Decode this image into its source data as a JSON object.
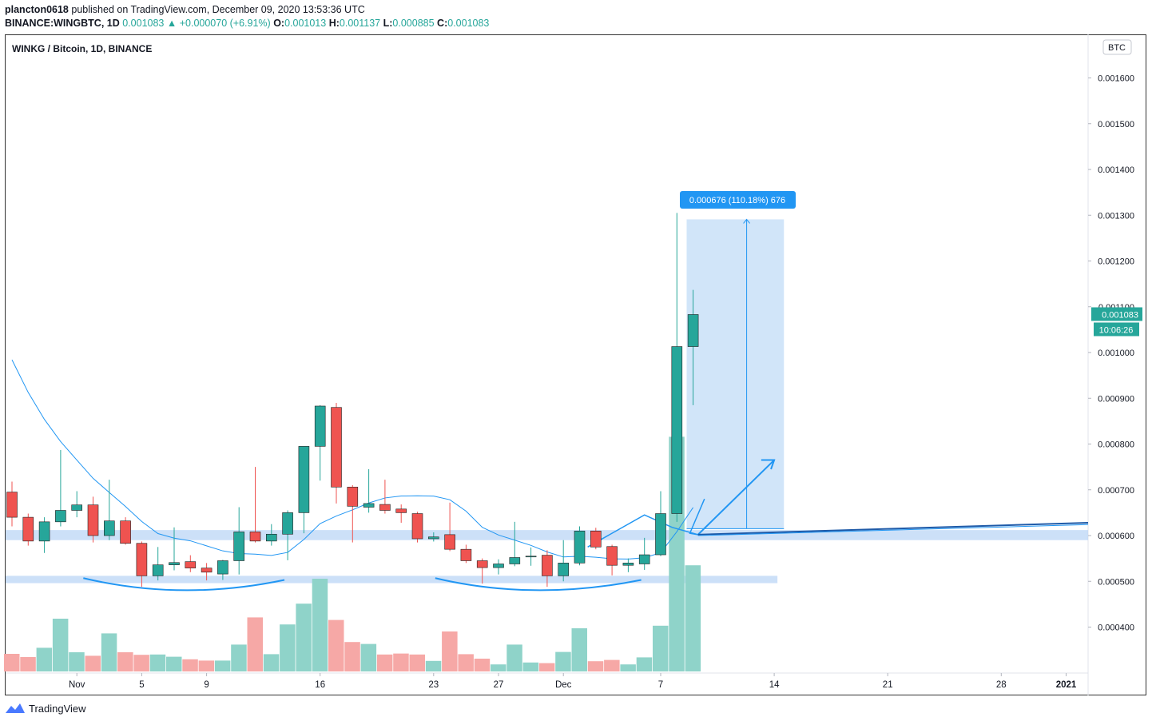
{
  "header": {
    "user": "plancton0618",
    "published": "published on TradingView.com, December 09, 2020 13:53:36 UTC",
    "symbol": "BINANCE:WINGBTC, 1D",
    "last": "0.001083",
    "change": "+0.000070 (+6.91%)",
    "o_label": "O:",
    "o_value": "0.001013",
    "h_label": "H:",
    "h_value": "0.001137",
    "l_label": "L:",
    "l_value": "0.000885",
    "c_label": "C:",
    "c_value": "0.001083"
  },
  "footer": {
    "brand": "TradingView"
  },
  "colors": {
    "up": "#26a69a",
    "down": "#ef5350",
    "ma": "#2196f3",
    "zone": "#bbd6f5"
  },
  "chart_data": {
    "type": "candlestick",
    "title": "WINKG / Bitcoin, 1D, BINANCE",
    "currency_badge": "BTC",
    "ylim": [
      0.00032,
      0.00175
    ],
    "y_ticks": [
      {
        "v": 0.0004,
        "label": "0.000400"
      },
      {
        "v": 0.0005,
        "label": "0.000500"
      },
      {
        "v": 0.0006,
        "label": "0.000600"
      },
      {
        "v": 0.0007,
        "label": "0.000700"
      },
      {
        "v": 0.0008,
        "label": "0.000800"
      },
      {
        "v": 0.0009,
        "label": "0.000900"
      },
      {
        "v": 0.001,
        "label": "0.001000"
      },
      {
        "v": 0.0011,
        "label": "0.001100"
      },
      {
        "v": 0.0012,
        "label": "0.001200"
      },
      {
        "v": 0.0013,
        "label": "0.001300"
      },
      {
        "v": 0.0014,
        "label": "0.001400"
      },
      {
        "v": 0.0015,
        "label": "0.001500"
      },
      {
        "v": 0.0016,
        "label": "0.001600"
      }
    ],
    "x_ticks": [
      {
        "i": 4,
        "label": "Nov"
      },
      {
        "i": 8,
        "label": "5"
      },
      {
        "i": 12,
        "label": "9"
      },
      {
        "i": 19,
        "label": "16"
      },
      {
        "i": 26,
        "label": "23"
      },
      {
        "i": 30,
        "label": "27"
      },
      {
        "i": 34,
        "label": "Dec"
      },
      {
        "i": 40,
        "label": "7"
      },
      {
        "i": 47,
        "label": "14"
      },
      {
        "i": 54,
        "label": "21"
      },
      {
        "i": 61,
        "label": "28"
      },
      {
        "i": 65,
        "label": "2021"
      }
    ],
    "price_label": "0.001083",
    "countdown_label": "10:06:26",
    "measure_label": "0.000676 (110.18%) 676",
    "candles": [
      {
        "o": 0.000695,
        "h": 0.000718,
        "l": 0.00062,
        "c": 0.00064,
        "v": 2.75e-05
      },
      {
        "o": 0.00064,
        "h": 0.000648,
        "l": 0.000578,
        "c": 0.000588,
        "v": 2.25e-05
      },
      {
        "o": 0.000588,
        "h": 0.00064,
        "l": 0.000562,
        "c": 0.00063,
        "v": 3.7e-05
      },
      {
        "o": 0.00063,
        "h": 0.000787,
        "l": 0.00062,
        "c": 0.000655,
        "v": 8.25e-05
      },
      {
        "o": 0.000655,
        "h": 0.000697,
        "l": 0.00064,
        "c": 0.000667,
        "v": 3e-05
      },
      {
        "o": 0.000667,
        "h": 0.000685,
        "l": 0.000585,
        "c": 0.0006,
        "v": 2.45e-05
      },
      {
        "o": 0.0006,
        "h": 0.000722,
        "l": 0.00059,
        "c": 0.000632,
        "v": 5.95e-05
      },
      {
        "o": 0.000632,
        "h": 0.00064,
        "l": 0.00058,
        "c": 0.000583,
        "v": 3e-05
      },
      {
        "o": 0.000583,
        "h": 0.000587,
        "l": 0.000488,
        "c": 0.000512,
        "v": 2.6e-05
      },
      {
        "o": 0.000512,
        "h": 0.000575,
        "l": 0.000502,
        "c": 0.000536,
        "v": 2.65e-05
      },
      {
        "o": 0.000536,
        "h": 0.000618,
        "l": 0.000524,
        "c": 0.000541,
        "v": 2.3e-05
      },
      {
        "o": 0.000543,
        "h": 0.000557,
        "l": 0.00052,
        "c": 0.000529,
        "v": 1.9e-05
      },
      {
        "o": 0.000529,
        "h": 0.00054,
        "l": 0.000502,
        "c": 0.00052,
        "v": 1.7e-05
      },
      {
        "o": 0.000516,
        "h": 0.000547,
        "l": 0.000503,
        "c": 0.000545,
        "v": 1.7e-05
      },
      {
        "o": 0.000545,
        "h": 0.000662,
        "l": 0.000515,
        "c": 0.000608,
        "v": 4.2e-05
      },
      {
        "o": 0.000608,
        "h": 0.00075,
        "l": 0.000585,
        "c": 0.000588,
        "v": 8.45e-05
      },
      {
        "o": 0.000588,
        "h": 0.000625,
        "l": 0.000578,
        "c": 0.000603,
        "v": 2.7e-05
      },
      {
        "o": 0.000603,
        "h": 0.000655,
        "l": 0.000546,
        "c": 0.00065,
        "v": 7.35e-05
      },
      {
        "o": 0.00065,
        "h": 0.00079,
        "l": 0.000605,
        "c": 0.000795,
        "v": 0.000106
      },
      {
        "o": 0.000795,
        "h": 0.000885,
        "l": 0.00072,
        "c": 0.000883,
        "v": 0.000145
      },
      {
        "o": 0.00088,
        "h": 0.00089,
        "l": 0.00067,
        "c": 0.000706,
        "v": 8.05e-05
      },
      {
        "o": 0.000706,
        "h": 0.00071,
        "l": 0.000585,
        "c": 0.000664,
        "v": 4.6e-05
      },
      {
        "o": 0.000662,
        "h": 0.000745,
        "l": 0.00065,
        "c": 0.00067,
        "v": 4.3e-05
      },
      {
        "o": 0.000668,
        "h": 0.000722,
        "l": 0.000648,
        "c": 0.000655,
        "v": 2.65e-05
      },
      {
        "o": 0.000658,
        "h": 0.000668,
        "l": 0.000628,
        "c": 0.00065,
        "v": 2.8e-05
      },
      {
        "o": 0.000648,
        "h": 0.000652,
        "l": 0.000585,
        "c": 0.000593,
        "v": 2.65e-05
      },
      {
        "o": 0.000593,
        "h": 0.000607,
        "l": 0.000587,
        "c": 0.000597,
        "v": 1.65e-05
      },
      {
        "o": 0.000602,
        "h": 0.000672,
        "l": 0.000566,
        "c": 0.00057,
        "v": 6.25e-05
      },
      {
        "o": 0.00057,
        "h": 0.00058,
        "l": 0.00054,
        "c": 0.000545,
        "v": 2.7e-05
      },
      {
        "o": 0.000545,
        "h": 0.00055,
        "l": 0.000495,
        "c": 0.00053,
        "v": 2e-05
      },
      {
        "o": 0.00053,
        "h": 0.000548,
        "l": 0.000515,
        "c": 0.000538,
        "v": 1.1e-05
      },
      {
        "o": 0.000538,
        "h": 0.00063,
        "l": 0.000533,
        "c": 0.000552,
        "v": 4.2e-05
      },
      {
        "o": 0.000554,
        "h": 0.000574,
        "l": 0.000534,
        "c": 0.000555,
        "v": 1.4e-05
      },
      {
        "o": 0.000557,
        "h": 0.000568,
        "l": 0.000488,
        "c": 0.000512,
        "v": 1.3e-05
      },
      {
        "o": 0.000512,
        "h": 0.00059,
        "l": 0.0005,
        "c": 0.00054,
        "v": 3.05e-05
      },
      {
        "o": 0.00054,
        "h": 0.00062,
        "l": 0.000535,
        "c": 0.00061,
        "v": 6.75e-05
      },
      {
        "o": 0.00061,
        "h": 0.000617,
        "l": 0.00057,
        "c": 0.000575,
        "v": 1.6e-05
      },
      {
        "o": 0.000576,
        "h": 0.00058,
        "l": 0.000513,
        "c": 0.000535,
        "v": 1.8e-05
      },
      {
        "o": 0.000535,
        "h": 0.00055,
        "l": 0.00052,
        "c": 0.00054,
        "v": 1.1e-05
      },
      {
        "o": 0.000538,
        "h": 0.000595,
        "l": 0.000525,
        "c": 0.000558,
        "v": 2.2e-05
      },
      {
        "o": 0.000558,
        "h": 0.000697,
        "l": 0.000555,
        "c": 0.000648,
        "v": 7.15e-05
      },
      {
        "o": 0.000648,
        "h": 0.001305,
        "l": 0.00063,
        "c": 0.001013,
        "v": 0.000367
      },
      {
        "o": 0.001013,
        "h": 0.001137,
        "l": 0.000885,
        "c": 0.001083,
        "v": 0.000166
      }
    ]
  }
}
